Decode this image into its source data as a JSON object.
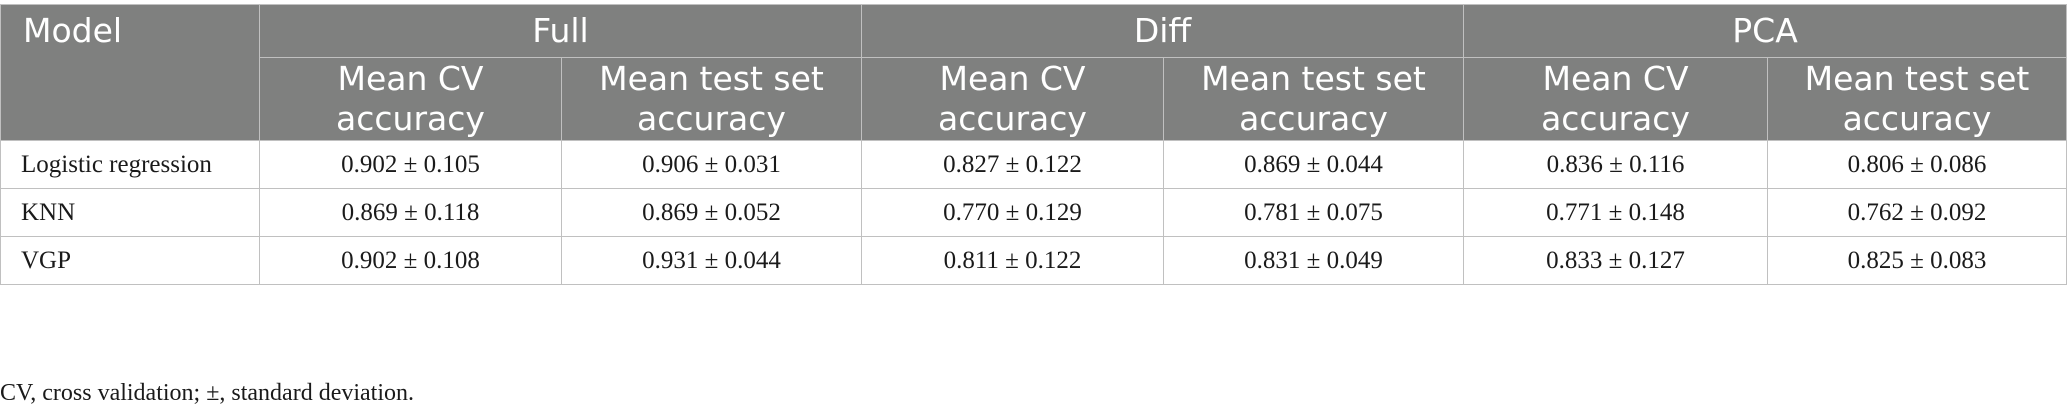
{
  "table": {
    "model_header": "Model",
    "groups": [
      "Full",
      "Diff",
      "PCA"
    ],
    "subheaders": [
      "Mean CV accuracy",
      "Mean test set accuracy",
      "Mean CV accuracy",
      "Mean test set accuracy",
      "Mean CV accuracy",
      "Mean test set accuracy"
    ],
    "rows": [
      {
        "model": "Logistic regression",
        "values": [
          "0.902 ± 0.105",
          "0.906 ± 0.031",
          "0.827 ± 0.122",
          "0.869 ± 0.044",
          "0.836 ± 0.116",
          "0.806 ± 0.086"
        ]
      },
      {
        "model": "KNN",
        "values": [
          "0.869 ± 0.118",
          "0.869 ± 0.052",
          "0.770 ± 0.129",
          "0.781 ± 0.075",
          "0.771 ± 0.148",
          "0.762 ± 0.092"
        ]
      },
      {
        "model": "VGP",
        "values": [
          "0.902 ± 0.108",
          "0.931 ± 0.044",
          "0.811 ± 0.122",
          "0.831 ± 0.049",
          "0.833 ± 0.127",
          "0.825 ± 0.083"
        ]
      }
    ]
  },
  "footnote": "CV, cross validation; ±, standard deviation."
}
